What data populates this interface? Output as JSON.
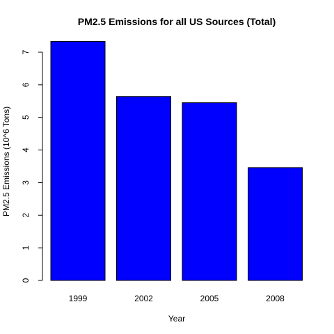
{
  "chart_data": {
    "type": "bar",
    "title": "PM2.5 Emissions for all US Sources (Total)",
    "xlabel": "Year",
    "ylabel": "PM2.5 Emissions (10^6 Tons)",
    "categories": [
      "1999",
      "2002",
      "2005",
      "2008"
    ],
    "values": [
      7.33,
      5.64,
      5.45,
      3.46
    ],
    "yticks": [
      0,
      1,
      2,
      3,
      4,
      5,
      6,
      7
    ],
    "ylim": [
      0,
      7.33
    ],
    "bar_color": "#0000ff",
    "bar_border_color": "#000000",
    "grid": false,
    "legend": "none"
  }
}
